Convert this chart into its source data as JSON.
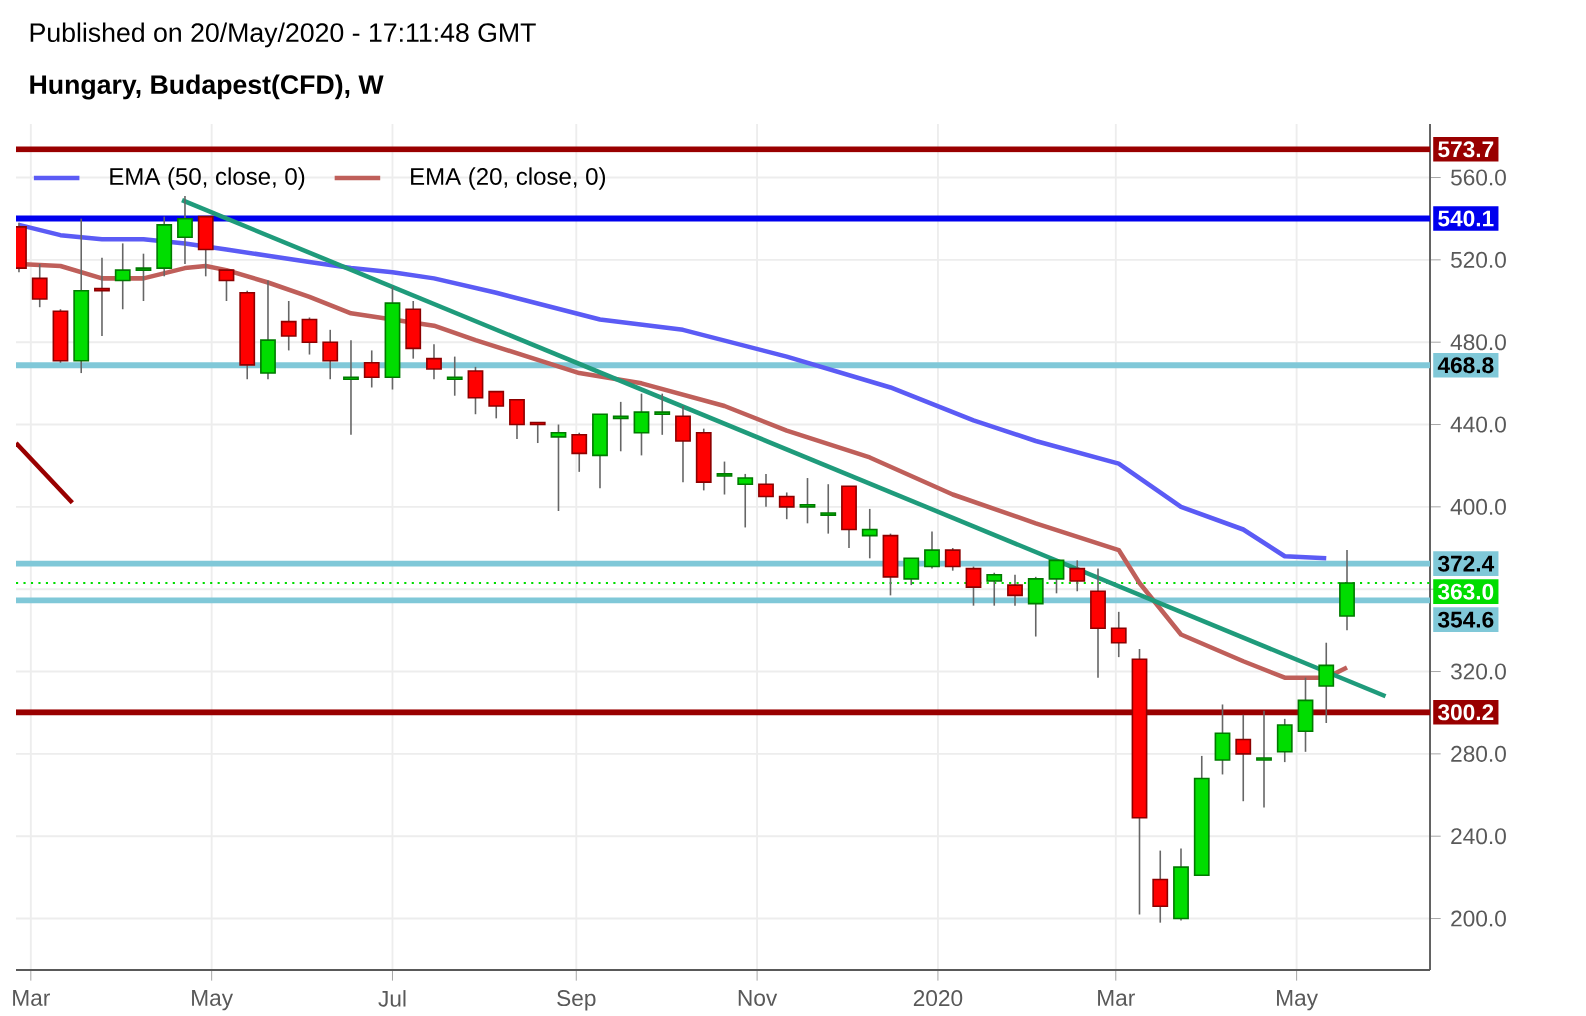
{
  "chart_data": {
    "type": "candlestick",
    "annotations": [
      "Published on 20/May/2020 - 17:11:48 GMT"
    ],
    "title": "Hungary, Budapest(CFD), W",
    "x": [
      "2019-02-25",
      "2019-03-04",
      "2019-03-11",
      "2019-03-18",
      "2019-03-25",
      "2019-04-01",
      "2019-04-08",
      "2019-04-15",
      "2019-04-22",
      "2019-04-29",
      "2019-05-06",
      "2019-05-13",
      "2019-05-20",
      "2019-05-27",
      "2019-06-03",
      "2019-06-10",
      "2019-06-17",
      "2019-06-24",
      "2019-07-01",
      "2019-07-08",
      "2019-07-15",
      "2019-07-22",
      "2019-07-29",
      "2019-08-05",
      "2019-08-12",
      "2019-08-19",
      "2019-08-26",
      "2019-09-02",
      "2019-09-09",
      "2019-09-16",
      "2019-09-23",
      "2019-09-30",
      "2019-10-07",
      "2019-10-14",
      "2019-10-21",
      "2019-10-28",
      "2019-11-04",
      "2019-11-11",
      "2019-11-18",
      "2019-11-25",
      "2019-12-02",
      "2019-12-09",
      "2019-12-16",
      "2019-12-23",
      "2019-12-30",
      "2020-01-06",
      "2020-01-13",
      "2020-01-20",
      "2020-01-27",
      "2020-02-03",
      "2020-02-10",
      "2020-02-17",
      "2020-02-24",
      "2020-03-02",
      "2020-03-09",
      "2020-03-16",
      "2020-03-23",
      "2020-03-30",
      "2020-04-06",
      "2020-04-13",
      "2020-04-20",
      "2020-04-27",
      "2020-05-04",
      "2020-05-11",
      "2020-05-18"
    ],
    "ohlc": [
      [
        536,
        538,
        514,
        516
      ],
      [
        511,
        518,
        497,
        501
      ],
      [
        495,
        496,
        470,
        471
      ],
      [
        471,
        540,
        465,
        505
      ],
      [
        506,
        521,
        483,
        505
      ],
      [
        510,
        528,
        496,
        515
      ],
      [
        515,
        523,
        500,
        516
      ],
      [
        516,
        541,
        512,
        537
      ],
      [
        531,
        551,
        518,
        540
      ],
      [
        541,
        541,
        512,
        525
      ],
      [
        515,
        515,
        500,
        510
      ],
      [
        504,
        505,
        462,
        469
      ],
      [
        465,
        510,
        462,
        481
      ],
      [
        490,
        500,
        476,
        483
      ],
      [
        491,
        492,
        474,
        480
      ],
      [
        480,
        486,
        462,
        471
      ],
      [
        462,
        481,
        435,
        463
      ],
      [
        470,
        476,
        458,
        463
      ],
      [
        463,
        507,
        457,
        499
      ],
      [
        496,
        500,
        472,
        477
      ],
      [
        472,
        479,
        462,
        467
      ],
      [
        462,
        473,
        454,
        463
      ],
      [
        466,
        468,
        445,
        453
      ],
      [
        456,
        456,
        443,
        449
      ],
      [
        452,
        452,
        433,
        440
      ],
      [
        441,
        441,
        431,
        440
      ],
      [
        434,
        440,
        398,
        436
      ],
      [
        435,
        436,
        417,
        426
      ],
      [
        425,
        445,
        409,
        445
      ],
      [
        443,
        451,
        427,
        444
      ],
      [
        436,
        455,
        425,
        446
      ],
      [
        445,
        455,
        435,
        446
      ],
      [
        444,
        449,
        412,
        432
      ],
      [
        436,
        438,
        408,
        412
      ],
      [
        415,
        422,
        406,
        416
      ],
      [
        411,
        416,
        390,
        414
      ],
      [
        411,
        416,
        400,
        405
      ],
      [
        405,
        407,
        394,
        400
      ],
      [
        400,
        414,
        392,
        401
      ],
      [
        396,
        411,
        387,
        397
      ],
      [
        410,
        410,
        380,
        389
      ],
      [
        386,
        399,
        375,
        389
      ],
      [
        386,
        387,
        357,
        366
      ],
      [
        365,
        375,
        362,
        375
      ],
      [
        371,
        388,
        370,
        379
      ],
      [
        379,
        380,
        369,
        371
      ],
      [
        370,
        371,
        352,
        361
      ],
      [
        364,
        368,
        352,
        367
      ],
      [
        362,
        367,
        352,
        357
      ],
      [
        353,
        366,
        337,
        365
      ],
      [
        365,
        374,
        358,
        374
      ],
      [
        370,
        374,
        359,
        364
      ],
      [
        359,
        370,
        317,
        341
      ],
      [
        341,
        349,
        327,
        334
      ],
      [
        326,
        331,
        202,
        249
      ],
      [
        219,
        233,
        198,
        206
      ],
      [
        200,
        234,
        199,
        225
      ],
      [
        221,
        279,
        221,
        268
      ],
      [
        277,
        304,
        270,
        290
      ],
      [
        287,
        299,
        257,
        280
      ],
      [
        277,
        301,
        254,
        278
      ],
      [
        281,
        297,
        276,
        294
      ],
      [
        291,
        317,
        281,
        306
      ],
      [
        313,
        334,
        295,
        323
      ],
      [
        347,
        379,
        340,
        363
      ]
    ],
    "colors": [
      "#ff0000",
      "#ff0000",
      "#ff0000",
      "#00dd00",
      "#ff0000",
      "#00dd00",
      "#00dd00",
      "#00dd00",
      "#00dd00",
      "#ff0000",
      "#ff0000",
      "#ff0000",
      "#00dd00",
      "#ff0000",
      "#ff0000",
      "#ff0000",
      "#00dd00",
      "#ff0000",
      "#00dd00",
      "#ff0000",
      "#ff0000",
      "#00dd00",
      "#ff0000",
      "#ff0000",
      "#ff0000",
      "#ff0000",
      "#00dd00",
      "#ff0000",
      "#00dd00",
      "#00dd00",
      "#00dd00",
      "#00dd00",
      "#ff0000",
      "#ff0000",
      "#00dd00",
      "#00dd00",
      "#ff0000",
      "#ff0000",
      "#00dd00",
      "#00dd00",
      "#ff0000",
      "#00dd00",
      "#ff0000",
      "#00dd00",
      "#00dd00",
      "#ff0000",
      "#ff0000",
      "#00dd00",
      "#ff0000",
      "#00dd00",
      "#00dd00",
      "#ff0000",
      "#ff0000",
      "#ff0000",
      "#ff0000",
      "#ff0000",
      "#00dd00",
      "#00dd00",
      "#00dd00",
      "#ff0000",
      "#00dd00",
      "#00dd00",
      "#00dd00",
      "#00dd00",
      "#00dd00"
    ],
    "series": [
      {
        "type": "line",
        "name": "EMA (50, close, 0)",
        "color": "#5b5bf5",
        "x": [
          "2019-02-25",
          "2019-03-11",
          "2019-03-25",
          "2019-04-08",
          "2019-04-22",
          "2019-05-06",
          "2019-05-20",
          "2019-06-03",
          "2019-06-17",
          "2019-07-01",
          "2019-07-15",
          "2019-08-05",
          "2019-09-09",
          "2019-10-07",
          "2019-11-11",
          "2019-12-16",
          "2020-01-13",
          "2020-02-03",
          "2020-03-02",
          "2020-03-23",
          "2020-04-13",
          "2020-04-27",
          "2020-05-11"
        ],
        "values": [
          537,
          532,
          530,
          530,
          528,
          525,
          522,
          519,
          516,
          514,
          511,
          504,
          491,
          486,
          473,
          458,
          442,
          432,
          421,
          400,
          389,
          376,
          375
        ]
      },
      {
        "type": "line",
        "name": "EMA (20, close, 0)",
        "color": "#bf5f5a",
        "x": [
          "2019-02-25",
          "2019-03-11",
          "2019-03-25",
          "2019-04-08",
          "2019-04-22",
          "2019-04-29",
          "2019-05-06",
          "2019-05-20",
          "2019-06-03",
          "2019-06-17",
          "2019-07-15",
          "2019-07-29",
          "2019-09-02",
          "2019-09-23",
          "2019-10-21",
          "2019-11-11",
          "2019-12-09",
          "2020-01-06",
          "2020-02-03",
          "2020-03-02",
          "2020-03-09",
          "2020-03-23",
          "2020-04-13",
          "2020-04-27",
          "2020-05-11",
          "2020-05-18"
        ],
        "values": [
          518,
          517,
          511,
          511,
          516,
          517,
          515,
          509,
          502,
          494,
          488,
          481,
          465,
          460,
          449,
          437,
          424,
          406,
          392,
          379,
          363,
          338,
          325,
          317,
          317,
          322
        ]
      },
      {
        "type": "line",
        "color": "#1f9b7b",
        "x": [
          "2019-04-21",
          "2020-05-31"
        ],
        "values": [
          549,
          308
        ]
      },
      {
        "type": "line",
        "color": "#990000",
        "x": [
          "2019-02-24",
          "2019-03-15"
        ],
        "values": [
          431,
          402
        ]
      }
    ],
    "xlim": [
      "2019-02-24",
      "2020-06-15"
    ],
    "xticks": [
      {
        "value": "2019-03-01",
        "label": "Mar"
      },
      {
        "value": "2019-05-01",
        "label": "May"
      },
      {
        "value": "2019-07-01",
        "label": "Jul"
      },
      {
        "value": "2019-09-01",
        "label": "Sep"
      },
      {
        "value": "2019-11-01",
        "label": "Nov"
      },
      {
        "value": "2020-01-01",
        "label": "2020"
      },
      {
        "value": "2020-03-01",
        "label": "Mar"
      },
      {
        "value": "2020-05-01",
        "label": "May"
      }
    ],
    "ylim": [
      175,
      586
    ],
    "yticks": [
      {
        "value": 200,
        "label": "200.0"
      },
      {
        "value": 240,
        "label": "240.0"
      },
      {
        "value": 280,
        "label": "280.0"
      },
      {
        "value": 320,
        "label": "320.0"
      },
      {
        "value": 360,
        "label": null
      },
      {
        "value": 400,
        "label": "400.0"
      },
      {
        "value": 440,
        "label": "440.0"
      },
      {
        "value": 480,
        "label": "480.0"
      },
      {
        "value": 520,
        "label": "520.0"
      },
      {
        "value": 560,
        "label": "560.0"
      }
    ],
    "grid": true,
    "legend": "top left",
    "ref_lines": [
      {
        "axis": "y",
        "value": 573.7,
        "label": "573.7",
        "color": "#990000"
      },
      {
        "axis": "y",
        "value": 540.1,
        "label": "540.1",
        "color": "#0000ee"
      },
      {
        "axis": "y",
        "value": 468.8,
        "label": "468.8",
        "color": "#80c8d8"
      },
      {
        "axis": "y",
        "value": 372.4,
        "label": "372.4",
        "color": "#80c8d8"
      },
      {
        "axis": "y",
        "value": 363.0,
        "label": "363.0",
        "color": "#00dd00",
        "line_style": "dotted"
      },
      {
        "axis": "y",
        "value": 354.6,
        "label": "354.6",
        "color": "#80c8d8"
      },
      {
        "axis": "y",
        "value": 300.2,
        "label": "300.2",
        "color": "#990000"
      }
    ]
  }
}
